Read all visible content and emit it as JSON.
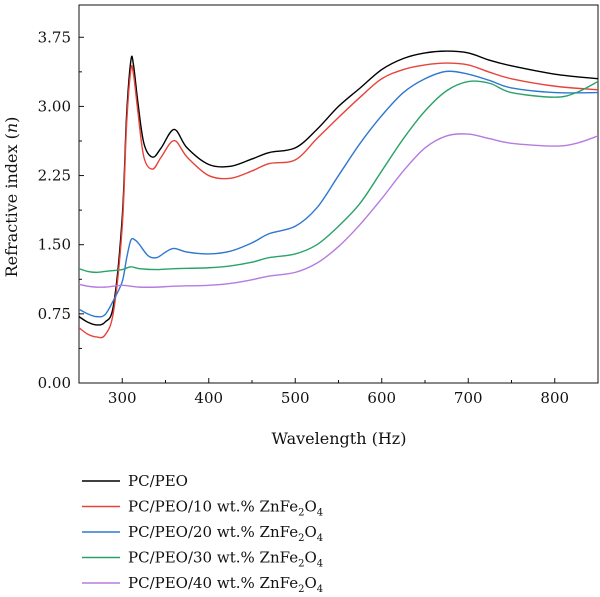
{
  "chart_data": {
    "type": "line",
    "xlabel": "Wavelength (Hz)",
    "ylabel_prefix": "Refractive index (",
    "ylabel_var": "n",
    "ylabel_suffix": ")",
    "xlim": [
      250,
      850
    ],
    "ylim": [
      0,
      4.1
    ],
    "xticks": [
      300,
      400,
      500,
      600,
      700,
      800
    ],
    "xtick_labels": [
      "300",
      "400",
      "500",
      "600",
      "700",
      "800"
    ],
    "yticks": [
      0,
      0.75,
      1.5,
      2.25,
      3.0,
      3.75
    ],
    "ytick_labels": [
      "0.00",
      "0.75",
      "1.50",
      "2.25",
      "3.00",
      "3.75"
    ],
    "grid": false,
    "legend_position": "bottom",
    "series": [
      {
        "name": "PC/PEO",
        "legend_main": "PC/PEO",
        "legend_sub": "",
        "legend_tail": "",
        "color": "#000000",
        "x": [
          250,
          260,
          270,
          280,
          290,
          300,
          305,
          310,
          313,
          318,
          325,
          335,
          345,
          360,
          375,
          400,
          425,
          450,
          470,
          500,
          525,
          550,
          575,
          600,
          625,
          650,
          675,
          700,
          725,
          750,
          800,
          850
        ],
        "y": [
          0.72,
          0.66,
          0.63,
          0.66,
          0.85,
          1.8,
          2.9,
          3.5,
          3.45,
          3.05,
          2.6,
          2.45,
          2.55,
          2.75,
          2.55,
          2.37,
          2.35,
          2.43,
          2.5,
          2.55,
          2.75,
          3.0,
          3.2,
          3.4,
          3.52,
          3.58,
          3.6,
          3.58,
          3.5,
          3.44,
          3.35,
          3.3
        ]
      },
      {
        "name": "PC/PEO/10 wt.% ZnFe2O4",
        "legend_main": "PC/PEO/10 wt.% ZnFe",
        "legend_sub": "2",
        "legend_tail": "O",
        "legend_sub2": "4",
        "color": "#e8433a",
        "x": [
          250,
          260,
          270,
          280,
          290,
          300,
          305,
          310,
          313,
          318,
          325,
          335,
          345,
          360,
          375,
          400,
          425,
          450,
          470,
          500,
          525,
          550,
          575,
          600,
          625,
          650,
          675,
          700,
          725,
          750,
          800,
          850
        ],
        "y": [
          0.6,
          0.53,
          0.5,
          0.52,
          0.78,
          1.7,
          2.8,
          3.4,
          3.35,
          2.95,
          2.45,
          2.32,
          2.45,
          2.63,
          2.45,
          2.25,
          2.22,
          2.3,
          2.38,
          2.42,
          2.65,
          2.88,
          3.1,
          3.3,
          3.4,
          3.45,
          3.47,
          3.45,
          3.37,
          3.3,
          3.22,
          3.18
        ]
      },
      {
        "name": "PC/PEO/20 wt.% ZnFe2O4",
        "legend_main": "PC/PEO/20 wt.% ZnFe",
        "legend_sub": "2",
        "legend_tail": "O",
        "legend_sub2": "4",
        "color": "#2f78d0",
        "x": [
          250,
          260,
          270,
          280,
          290,
          300,
          305,
          310,
          315,
          320,
          330,
          340,
          350,
          360,
          375,
          400,
          425,
          450,
          470,
          500,
          525,
          550,
          575,
          600,
          625,
          650,
          675,
          700,
          725,
          750,
          800,
          850
        ],
        "y": [
          0.8,
          0.75,
          0.72,
          0.74,
          0.9,
          1.1,
          1.35,
          1.55,
          1.55,
          1.5,
          1.38,
          1.36,
          1.42,
          1.46,
          1.42,
          1.4,
          1.43,
          1.52,
          1.62,
          1.7,
          1.9,
          2.25,
          2.6,
          2.9,
          3.15,
          3.3,
          3.38,
          3.35,
          3.28,
          3.2,
          3.15,
          3.15
        ]
      },
      {
        "name": "PC/PEO/30 wt.% ZnFe2O4",
        "legend_main": "PC/PEO/30 wt.% ZnFe",
        "legend_sub": "2",
        "legend_tail": "O",
        "legend_sub2": "4",
        "color": "#2aa36a",
        "x": [
          250,
          260,
          270,
          280,
          290,
          300,
          310,
          320,
          340,
          360,
          400,
          425,
          450,
          470,
          500,
          525,
          550,
          575,
          600,
          625,
          650,
          675,
          700,
          725,
          750,
          800,
          825,
          850
        ],
        "y": [
          1.24,
          1.21,
          1.2,
          1.21,
          1.22,
          1.23,
          1.26,
          1.24,
          1.23,
          1.24,
          1.25,
          1.27,
          1.31,
          1.36,
          1.4,
          1.5,
          1.7,
          1.95,
          2.3,
          2.65,
          2.95,
          3.17,
          3.27,
          3.25,
          3.15,
          3.1,
          3.15,
          3.27
        ]
      },
      {
        "name": "PC/PEO/40 wt.% ZnFe2O4",
        "legend_main": "PC/PEO/40 wt.% ZnFe",
        "legend_sub": "2",
        "legend_tail": "O",
        "legend_sub2": "4",
        "color": "#b57be0",
        "x": [
          250,
          260,
          270,
          280,
          290,
          300,
          310,
          320,
          340,
          360,
          400,
          425,
          450,
          470,
          500,
          525,
          550,
          575,
          600,
          625,
          650,
          675,
          700,
          725,
          750,
          800,
          825,
          850
        ],
        "y": [
          1.07,
          1.05,
          1.04,
          1.04,
          1.05,
          1.06,
          1.05,
          1.04,
          1.04,
          1.05,
          1.06,
          1.08,
          1.12,
          1.16,
          1.2,
          1.3,
          1.48,
          1.72,
          2.0,
          2.3,
          2.55,
          2.68,
          2.7,
          2.65,
          2.6,
          2.57,
          2.6,
          2.68
        ]
      }
    ]
  }
}
